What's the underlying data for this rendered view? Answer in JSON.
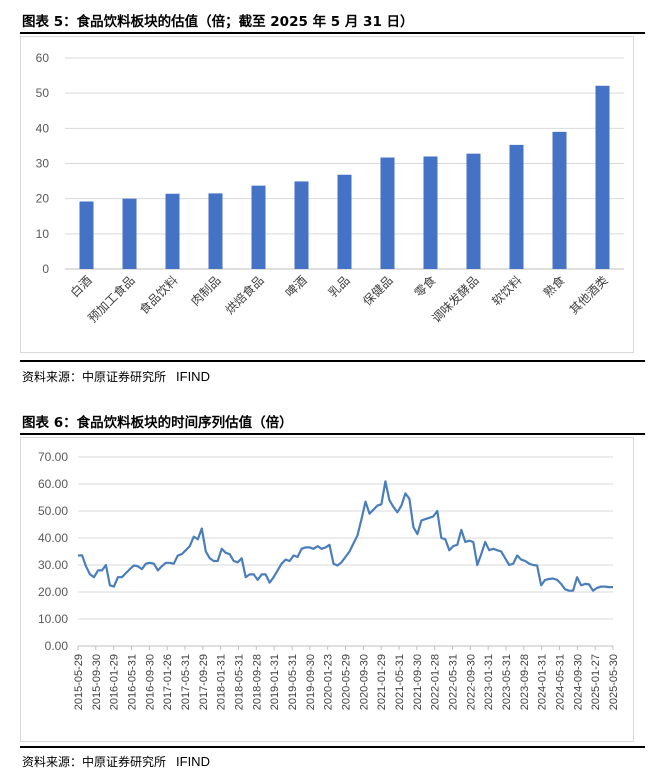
{
  "figures": [
    {
      "title": "图表 5：食品饮料板块的估值（倍；截至 2025 年 5 月 31 日）",
      "source_label": "资料来源：中原证券研究所",
      "source_vendor": "IFIND"
    },
    {
      "title": "图表 6：食品饮料板块的时间序列估值（倍）",
      "source_label": "资料来源：中原证券研究所",
      "source_vendor": "IFIND"
    }
  ],
  "chart_data": [
    {
      "type": "bar",
      "title": "食品饮料板块的估值（倍；截至 2025 年 5 月 31 日）",
      "xlabel": "",
      "ylabel": "",
      "categories": [
        "白酒",
        "预加工食品",
        "食品饮料",
        "肉制品",
        "烘焙食品",
        "啤酒",
        "乳品",
        "保健品",
        "零食",
        "调味发酵品",
        "软饮料",
        "熟食",
        "其他酒类"
      ],
      "values": [
        19.2,
        20.0,
        21.4,
        21.5,
        23.7,
        24.9,
        26.8,
        31.7,
        32.0,
        32.8,
        35.3,
        39.0,
        52.1
      ],
      "ylim": [
        0,
        60
      ],
      "yticks": [
        "0",
        "10",
        "20",
        "30",
        "40",
        "50",
        "60"
      ],
      "color": "#4472c4",
      "grid": true
    },
    {
      "type": "line",
      "title": "食品饮料板块的时间序列估值（倍）",
      "xlabel": "",
      "ylabel": "",
      "x_tick_labels": [
        "2015-05-29",
        "2015-09-30",
        "2016-01-29",
        "2016-05-31",
        "2016-09-30",
        "2017-01-26",
        "2017-05-31",
        "2017-09-29",
        "2018-01-31",
        "2018-05-31",
        "2018-09-28",
        "2019-01-31",
        "2019-05-31",
        "2019-09-30",
        "2020-01-23",
        "2020-05-29",
        "2020-09-30",
        "2021-01-29",
        "2021-05-31",
        "2021-09-30",
        "2022-01-28",
        "2022-05-31",
        "2022-09-30",
        "2023-01-31",
        "2023-05-31",
        "2023-09-28",
        "2024-01-31",
        "2024-05-31",
        "2024-09-30",
        "2025-01-27",
        "2025-05-30"
      ],
      "values": [
        33.5,
        33.6,
        29.5,
        26.5,
        25.5,
        28.0,
        28.0,
        30.0,
        22.5,
        22.0,
        25.5,
        25.5,
        27.0,
        28.5,
        29.8,
        29.5,
        28.5,
        30.5,
        30.8,
        30.5,
        28.0,
        29.5,
        30.8,
        30.8,
        30.5,
        33.5,
        34.0,
        35.5,
        37.0,
        40.5,
        39.5,
        43.5,
        35.0,
        32.5,
        31.5,
        31.5,
        36.0,
        34.5,
        34.0,
        31.5,
        31.0,
        32.5,
        25.5,
        26.5,
        26.5,
        24.5,
        26.5,
        26.5,
        23.5,
        25.5,
        28.0,
        30.5,
        32.0,
        31.5,
        33.5,
        33.0,
        36.0,
        36.5,
        36.5,
        36.0,
        37.0,
        36.0,
        36.5,
        37.5,
        30.5,
        29.8,
        31.0,
        33.0,
        35.0,
        38.0,
        41.0,
        47.0,
        53.5,
        49.0,
        50.5,
        52.0,
        52.5,
        61.0,
        54.0,
        51.5,
        49.5,
        52.0,
        56.5,
        54.5,
        44.0,
        41.5,
        46.5,
        47.0,
        47.5,
        48.0,
        50.0,
        40.0,
        39.5,
        35.5,
        37.0,
        37.5,
        43.0,
        38.5,
        39.0,
        38.5,
        30.0,
        34.0,
        38.5,
        35.5,
        36.0,
        35.5,
        35.0,
        32.5,
        30.0,
        30.5,
        33.5,
        32.0,
        31.5,
        30.5,
        30.0,
        29.8,
        22.5,
        24.5,
        24.8,
        25.0,
        24.5,
        23.0,
        21.0,
        20.5,
        20.5,
        25.5,
        22.5,
        23.0,
        22.8,
        20.5,
        21.5,
        22.0,
        22.0,
        21.8,
        21.8
      ],
      "ylim": [
        0,
        70
      ],
      "yticks": [
        "0.00",
        "10.00",
        "20.00",
        "30.00",
        "40.00",
        "50.00",
        "60.00",
        "70.00"
      ],
      "color": "#4a7ebb",
      "grid": true
    }
  ]
}
